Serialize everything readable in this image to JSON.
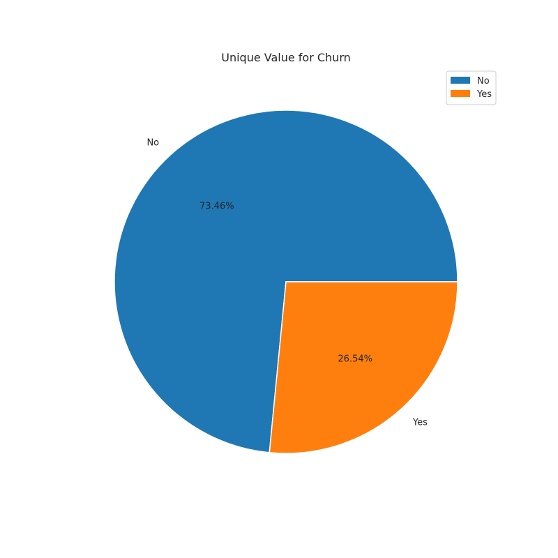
{
  "chart_data": {
    "type": "pie",
    "title": "Unique Value for Churn",
    "categories": [
      "No",
      "Yes"
    ],
    "values": [
      73.46,
      26.54
    ],
    "percent_labels": [
      "73.46%",
      "26.54%"
    ],
    "colors": [
      "#1f77b4",
      "#ff7f0e"
    ],
    "legend": {
      "placement": "top-right",
      "entries": [
        "No",
        "Yes"
      ]
    }
  }
}
